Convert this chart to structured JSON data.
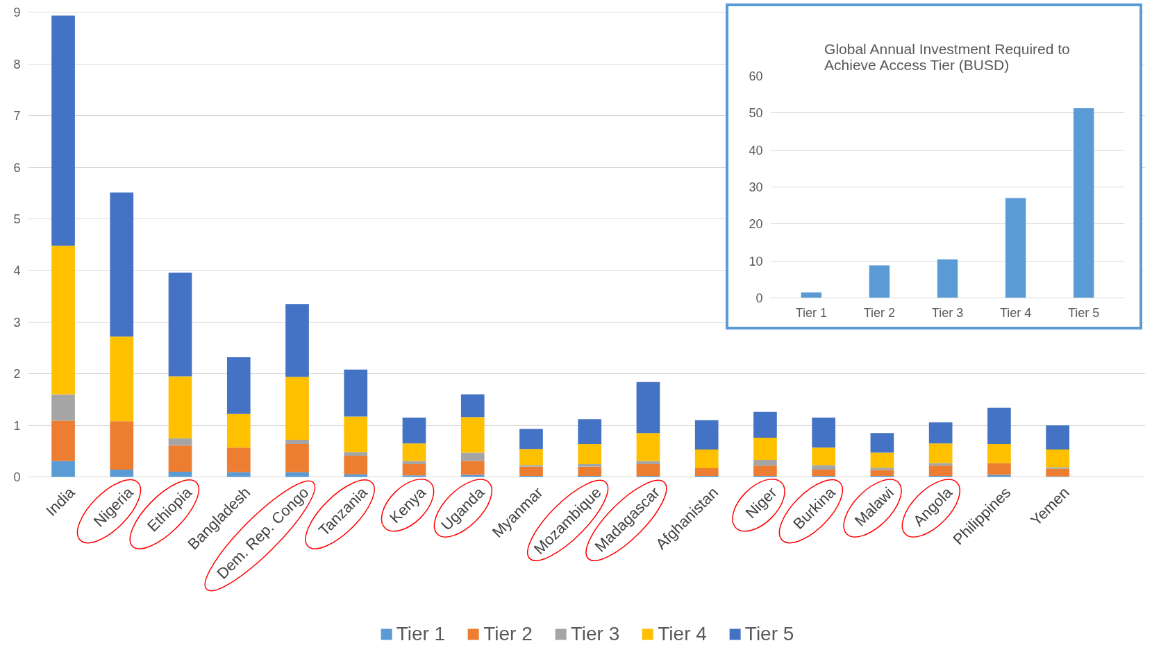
{
  "chart_data": [
    {
      "type": "bar",
      "stacked": true,
      "categories": [
        "India",
        "Nigeria",
        "Ethiopia",
        "Bangladesh",
        "Dem. Rep. Congo",
        "Tanzania",
        "Kenya",
        "Uganda",
        "Myanmar",
        "Mozambique",
        "Madagascar",
        "Afghanistan",
        "Niger",
        "Burkina",
        "Malawi",
        "Angola",
        "Philippines",
        "Yemen"
      ],
      "series": [
        {
          "name": "Tier 1",
          "color": "#5b9bd5",
          "values": [
            0.31,
            0.14,
            0.1,
            0.09,
            0.09,
            0.05,
            0.03,
            0.04,
            0.02,
            0.02,
            0.02,
            0.02,
            0.02,
            0.02,
            0.02,
            0.02,
            0.04,
            0.01
          ]
        },
        {
          "name": "Tier 2",
          "color": "#ed7d31",
          "values": [
            0.78,
            0.94,
            0.51,
            0.48,
            0.55,
            0.36,
            0.22,
            0.27,
            0.18,
            0.18,
            0.23,
            0.15,
            0.2,
            0.12,
            0.11,
            0.2,
            0.23,
            0.15
          ]
        },
        {
          "name": "Tier 3",
          "color": "#a5a5a5",
          "values": [
            0.51,
            null,
            0.14,
            null,
            0.08,
            0.07,
            0.06,
            0.16,
            0.03,
            0.05,
            0.06,
            null,
            0.11,
            0.09,
            0.05,
            0.05,
            null,
            0.03
          ]
        },
        {
          "name": "Tier 4",
          "color": "#ffc000",
          "values": [
            2.88,
            1.64,
            1.2,
            0.65,
            1.22,
            0.69,
            0.34,
            0.69,
            0.31,
            0.39,
            0.54,
            0.36,
            0.43,
            0.34,
            0.29,
            0.38,
            0.37,
            0.34
          ]
        },
        {
          "name": "Tier 5",
          "color": "#4472c4",
          "values": [
            4.46,
            2.79,
            2.01,
            1.1,
            1.41,
            0.91,
            0.5,
            0.44,
            0.39,
            0.48,
            0.99,
            0.57,
            0.5,
            0.58,
            0.38,
            0.41,
            0.7,
            0.47
          ]
        }
      ],
      "ylim": [
        0,
        9
      ],
      "yticks": [
        0,
        1,
        2,
        3,
        4,
        5,
        6,
        7,
        8,
        9
      ],
      "grid": "y",
      "legend": "bottom"
    },
    {
      "type": "bar",
      "title": "Global Annual Investment Required to\nAchieve Access Tier (BUSD)",
      "categories": [
        "Tier 1",
        "Tier 2",
        "Tier 3",
        "Tier 4",
        "Tier 5"
      ],
      "values": [
        1.5,
        8.8,
        10.4,
        27,
        51.3
      ],
      "color": "#5b9bd5",
      "ylim": [
        0,
        60
      ],
      "yticks": [
        0,
        10,
        20,
        30,
        40,
        50,
        60
      ],
      "grid": "y"
    }
  ]
}
